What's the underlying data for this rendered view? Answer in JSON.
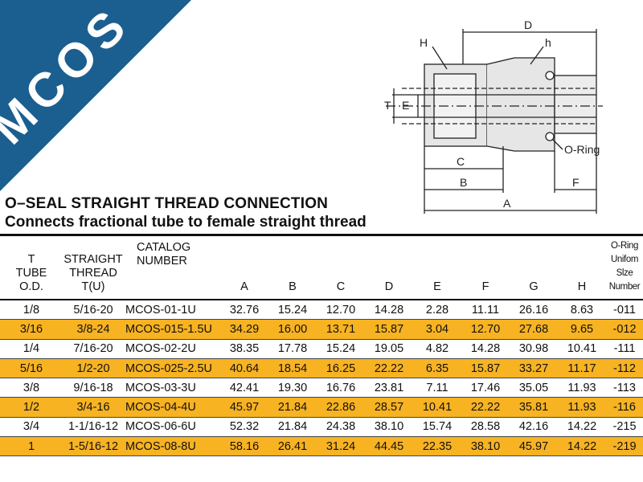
{
  "brand": {
    "logo_text": "MCOS",
    "color": "#1a5f8f"
  },
  "diagram_labels": {
    "D": "D",
    "H": "H",
    "h": "h",
    "T": "T",
    "E": "E",
    "C": "C",
    "B": "B",
    "A": "A",
    "F": "F",
    "oring": "O-Ring"
  },
  "titles": {
    "main": "O–SEAL STRAIGHT THREAD CONNECTION",
    "sub": "Connects fractional tube to female straight thread"
  },
  "table": {
    "headers": {
      "t": [
        "T",
        "TUBE",
        "O.D."
      ],
      "thread": [
        "STRAIGHT",
        "THREAD",
        "T(U)"
      ],
      "catalog": [
        "CATALOG",
        "NUMBER"
      ],
      "A": "A",
      "B": "B",
      "C": "C",
      "D": "D",
      "E": "E",
      "F": "F",
      "G": "G",
      "H": "H",
      "oring": [
        "O-Ring",
        "Unifom",
        "Slze Number"
      ]
    },
    "rows": [
      [
        "1/8",
        "5/16-20",
        "MCOS-01-1U",
        "32.76",
        "15.24",
        "12.70",
        "14.28",
        "2.28",
        "11.11",
        "26.16",
        "8.63",
        "-011"
      ],
      [
        "3/16",
        "3/8-24",
        "MCOS-015-1.5U",
        "34.29",
        "16.00",
        "13.71",
        "15.87",
        "3.04",
        "12.70",
        "27.68",
        "9.65",
        "-012"
      ],
      [
        "1/4",
        "7/16-20",
        "MCOS-02-2U",
        "38.35",
        "17.78",
        "15.24",
        "19.05",
        "4.82",
        "14.28",
        "30.98",
        "10.41",
        "-111"
      ],
      [
        "5/16",
        "1/2-20",
        "MCOS-025-2.5U",
        "40.64",
        "18.54",
        "16.25",
        "22.22",
        "6.35",
        "15.87",
        "33.27",
        "11.17",
        "-112"
      ],
      [
        "3/8",
        "9/16-18",
        "MCOS-03-3U",
        "42.41",
        "19.30",
        "16.76",
        "23.81",
        "7.11",
        "17.46",
        "35.05",
        "11.93",
        "-113"
      ],
      [
        "1/2",
        "3/4-16",
        "MCOS-04-4U",
        "45.97",
        "21.84",
        "22.86",
        "28.57",
        "10.41",
        "22.22",
        "35.81",
        "11.93",
        "-116"
      ],
      [
        "3/4",
        "1-1/16-12",
        "MCOS-06-6U",
        "52.32",
        "21.84",
        "24.38",
        "38.10",
        "15.74",
        "28.58",
        "42.16",
        "14.22",
        "-215"
      ],
      [
        "1",
        "1-5/16-12",
        "MCOS-08-8U",
        "58.16",
        "26.41",
        "31.24",
        "44.45",
        "22.35",
        "38.10",
        "45.97",
        "14.22",
        "-219"
      ]
    ],
    "highlight_color": "#f7b322"
  }
}
